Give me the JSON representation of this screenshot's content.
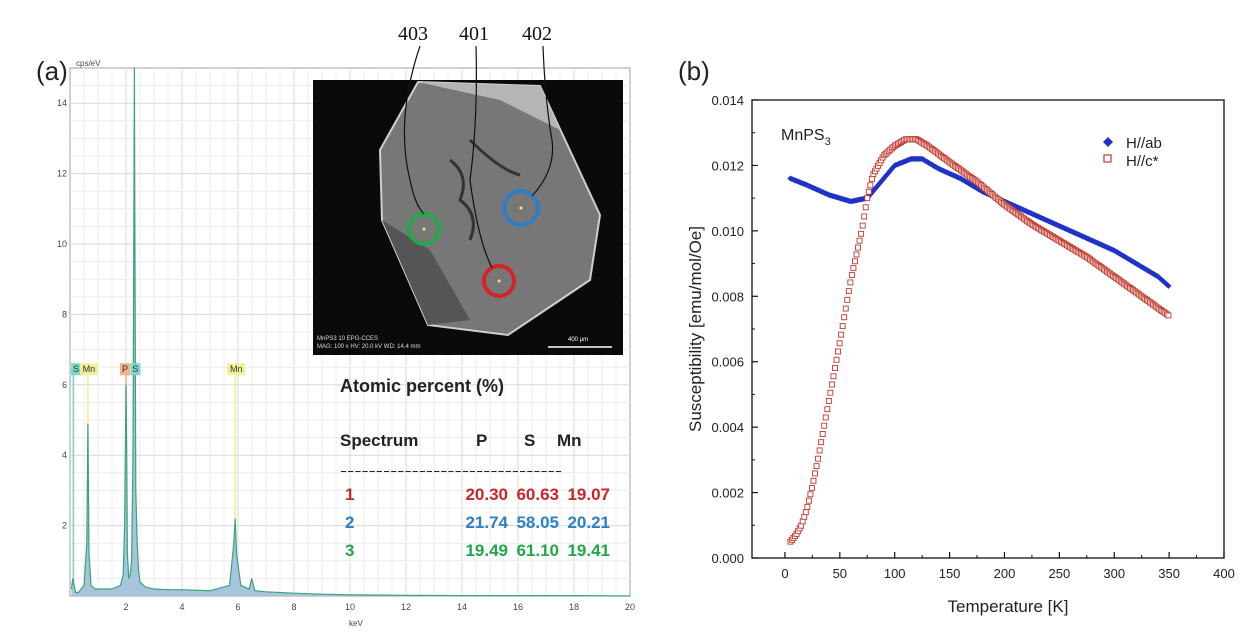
{
  "panel_a": {
    "label": "(a)",
    "y_unit": "cps/eV",
    "x_unit": "keV",
    "callouts": [
      "403",
      "401",
      "402"
    ],
    "inset": {
      "scale_label": "400 µm",
      "caption_line1": "MnPS3 10 EPG-CCES",
      "caption_line2": "MAG: 100 x  HV: 20.0 kV  WD: 14.4 mm",
      "marker_colors": {
        "green": "#21a84a",
        "red": "#d62424",
        "blue": "#2d7fc4"
      }
    },
    "peak_labels": [
      {
        "text": "S",
        "color": "#7ed6c8"
      },
      {
        "text": "Mn",
        "color": "#f2ee9a"
      },
      {
        "text": "P",
        "color": "#f6b089"
      },
      {
        "text": "S",
        "color": "#7ed6c8"
      },
      {
        "text": "Mn",
        "color": "#f2ee9a"
      }
    ],
    "table": {
      "title": "Atomic percent (%)",
      "headers": [
        "Spectrum",
        "P",
        "S",
        "Mn"
      ],
      "divider": "-------------------------------",
      "rows": [
        {
          "spectrum": "1",
          "P": "20.30",
          "S": "60.63",
          "Mn": "19.07",
          "color": "#c8262a"
        },
        {
          "spectrum": "2",
          "P": "21.74",
          "S": "58.05",
          "Mn": "20.21",
          "color": "#2d7fc4"
        },
        {
          "spectrum": "3",
          "P": "19.49",
          "S": "61.10",
          "Mn": "19.41",
          "color": "#22a64a"
        }
      ]
    }
  },
  "panel_b": {
    "label": "(b)",
    "sample": "MnPS",
    "sample_sub": "3",
    "legend": [
      {
        "text": "H//ab",
        "color": "#1f33c8",
        "marker": "diamond-filled"
      },
      {
        "text": "H//c*",
        "color": "#c0392b",
        "marker": "square-open"
      }
    ]
  },
  "chart_data": [
    {
      "type": "line",
      "title": "",
      "xlabel": "keV",
      "ylabel": "cps/eV",
      "xlim": [
        0,
        20
      ],
      "ylim": [
        0,
        15
      ],
      "xticks": [
        "2",
        "4",
        "6",
        "8",
        "10",
        "12",
        "14",
        "16",
        "18",
        "20"
      ],
      "yticks": [
        "2",
        "4",
        "6",
        "8",
        "10",
        "12",
        "14"
      ],
      "grid": true,
      "series": [
        {
          "x": [
            0.05,
            0.1,
            0.2,
            0.3,
            0.4,
            0.5,
            0.6,
            0.64,
            0.68,
            0.75,
            0.9,
            1.2,
            1.5,
            1.8,
            1.9,
            1.95,
            2.0,
            2.02,
            2.05,
            2.1,
            2.15,
            2.2,
            2.25,
            2.3,
            2.31,
            2.35,
            2.4,
            2.45,
            2.5,
            2.7,
            3.0,
            3.5,
            4.0,
            5.0,
            5.7,
            5.85,
            5.9,
            5.95,
            6.1,
            6.4,
            6.49,
            6.6,
            7.0,
            8.0,
            9.0,
            10.0,
            12.0,
            14.0,
            16.0,
            18.0,
            20.0
          ],
          "values": [
            0.2,
            0.5,
            0.1,
            0.1,
            0.2,
            0.3,
            1.5,
            4.9,
            1.2,
            0.3,
            0.2,
            0.2,
            0.2,
            0.3,
            0.6,
            2.0,
            6.0,
            4.5,
            1.2,
            0.5,
            0.6,
            1.0,
            4.0,
            15.0,
            12.0,
            3.0,
            1.5,
            0.7,
            0.4,
            0.25,
            0.2,
            0.18,
            0.18,
            0.15,
            0.3,
            1.5,
            2.2,
            1.2,
            0.3,
            0.2,
            0.5,
            0.15,
            0.12,
            0.08,
            0.05,
            0.03,
            0.02,
            0.01,
            0.01,
            0.01,
            0.0
          ]
        }
      ]
    },
    {
      "type": "scatter",
      "title": "",
      "xlabel": "Temperature [K]",
      "ylabel": "Susceptibility [emu/mol/Oe]",
      "xlim": [
        -30,
        400
      ],
      "ylim": [
        0,
        0.014
      ],
      "xticks": [
        "0",
        "50",
        "100",
        "150",
        "200",
        "250",
        "300",
        "350",
        "400"
      ],
      "yticks": [
        "0.000",
        "0.002",
        "0.004",
        "0.006",
        "0.008",
        "0.010",
        "0.012",
        "0.014"
      ],
      "legend_position": "top-right",
      "grid": false,
      "series": [
        {
          "name": "H//ab",
          "x": [
            5,
            20,
            40,
            60,
            75,
            85,
            100,
            115,
            125,
            140,
            160,
            180,
            200,
            220,
            240,
            260,
            280,
            300,
            320,
            340,
            350
          ],
          "values": [
            0.0116,
            0.0114,
            0.0111,
            0.0109,
            0.011,
            0.0114,
            0.012,
            0.0122,
            0.0122,
            0.0119,
            0.0116,
            0.0112,
            0.0109,
            0.0106,
            0.0103,
            0.01,
            0.0097,
            0.0094,
            0.009,
            0.0086,
            0.0083
          ]
        },
        {
          "name": "H//c*",
          "x": [
            5,
            10,
            15,
            20,
            25,
            30,
            40,
            50,
            60,
            70,
            75,
            80,
            90,
            100,
            110,
            120,
            130,
            150,
            175,
            200,
            225,
            250,
            275,
            300,
            325,
            350
          ],
          "values": [
            0.0005,
            0.0007,
            0.001,
            0.0015,
            0.0022,
            0.003,
            0.0048,
            0.0066,
            0.0085,
            0.01,
            0.011,
            0.0117,
            0.0123,
            0.0126,
            0.0128,
            0.0128,
            0.0126,
            0.0121,
            0.0115,
            0.0108,
            0.0102,
            0.0097,
            0.0092,
            0.0086,
            0.008,
            0.0074
          ]
        }
      ]
    }
  ]
}
